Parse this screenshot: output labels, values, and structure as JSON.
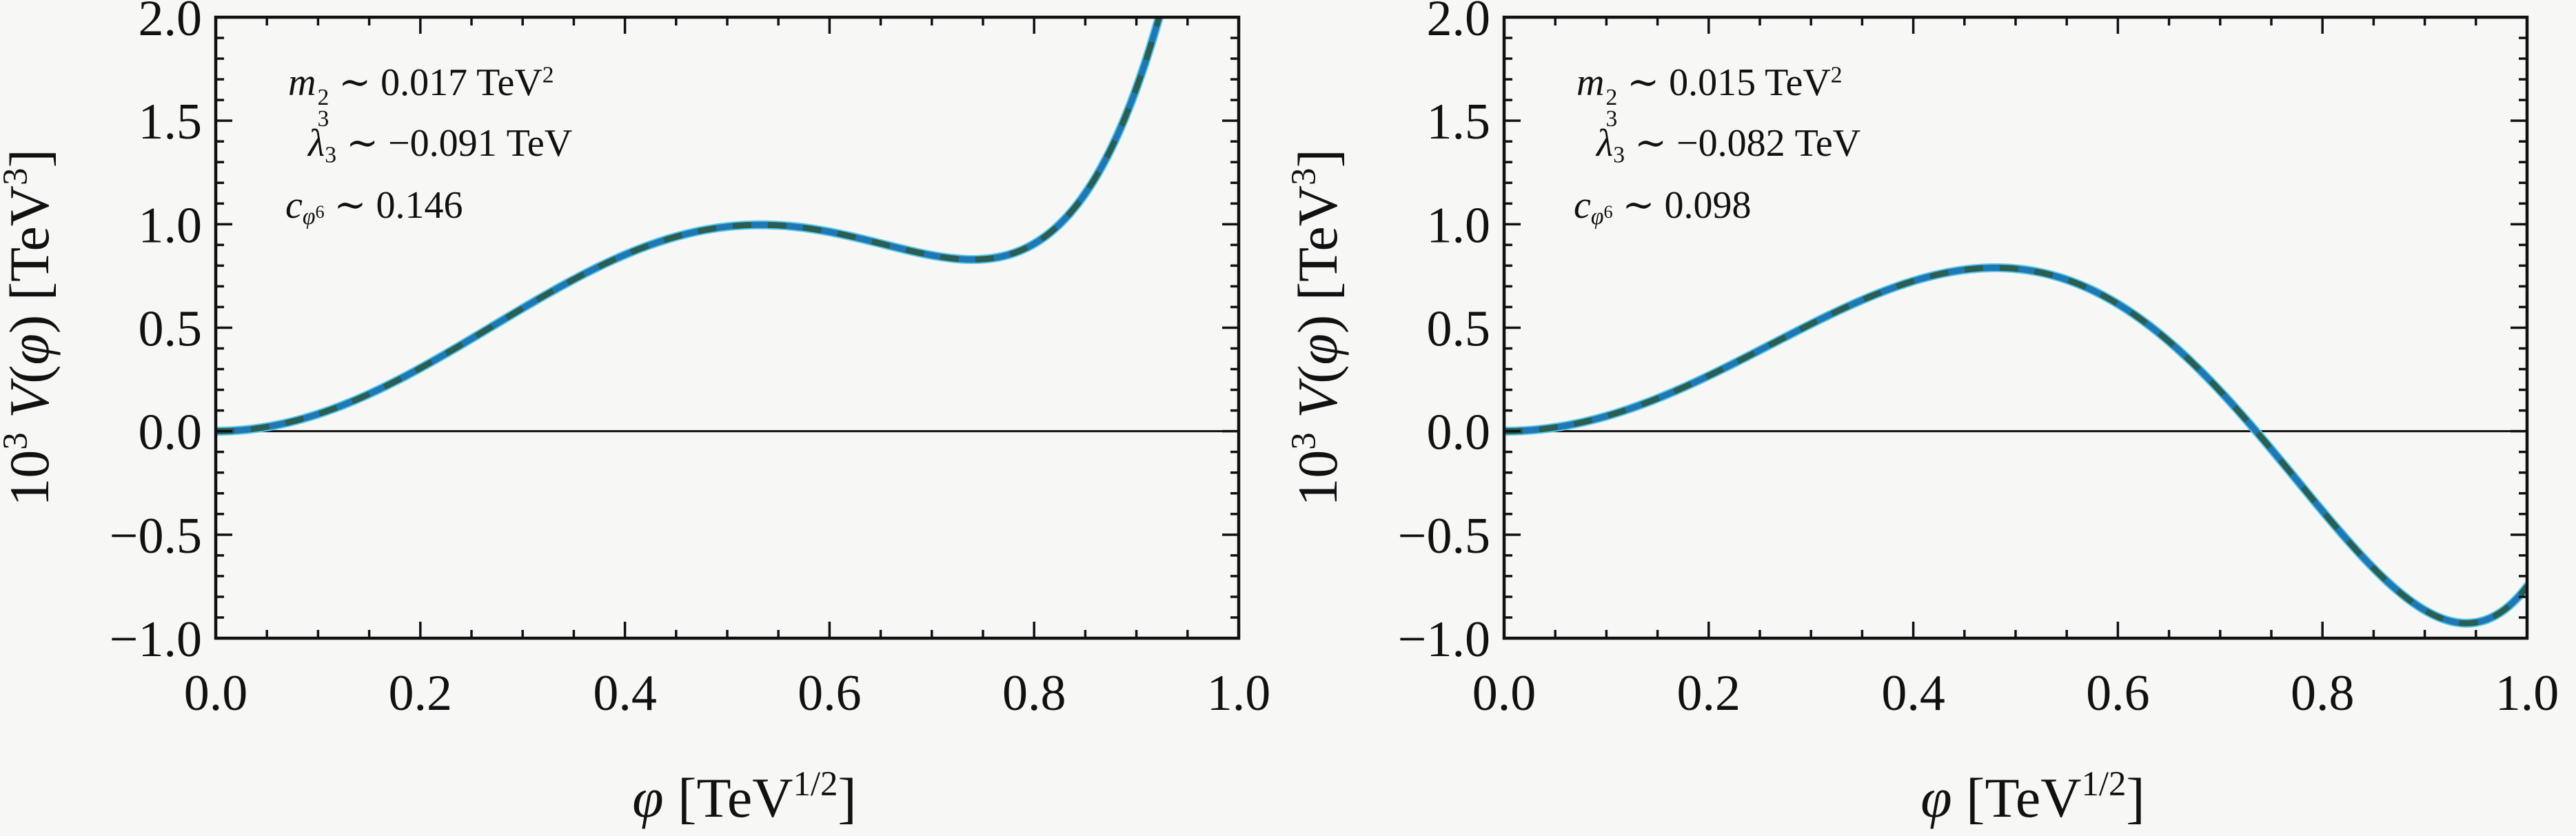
{
  "style": {
    "background": "#f7f7f5",
    "frame_color": "#111111",
    "text_color": "#111111",
    "curve_blue": "#1f77b4",
    "curve_teal": "#2a5e52",
    "curve_cyan": "#5cc8e8",
    "zero_line_color": "#111111"
  },
  "chart_data": [
    {
      "type": "line",
      "title": "",
      "xlabel": "φ [TeV^1/2]",
      "ylabel": "10^3 V(φ) [TeV^3]",
      "xlabel_segments": [
        {
          "k": "it",
          "t": "φ"
        },
        {
          "k": "t",
          "t": " [TeV"
        },
        {
          "k": "sp",
          "t": "1/2"
        },
        {
          "k": "t",
          "t": "]"
        }
      ],
      "ylabel_segments": [
        {
          "k": "t",
          "t": "10"
        },
        {
          "k": "sp",
          "t": "3"
        },
        {
          "k": "t",
          "t": " "
        },
        {
          "k": "it",
          "t": "V"
        },
        {
          "k": "t",
          "t": "("
        },
        {
          "k": "it",
          "t": "φ"
        },
        {
          "k": "t",
          "t": ")  [TeV"
        },
        {
          "k": "sp",
          "t": "3"
        },
        {
          "k": "t",
          "t": "]"
        }
      ],
      "xlim": [
        0.0,
        1.0
      ],
      "ylim": [
        -1.0,
        2.0
      ],
      "xticks": {
        "values": [
          0.0,
          0.2,
          0.4,
          0.6,
          0.8,
          1.0
        ],
        "labels": [
          "0.0",
          "0.2",
          "0.4",
          "0.6",
          "0.8",
          "1.0"
        ],
        "minor_step": 0.05
      },
      "yticks": {
        "values": [
          -1.0,
          -0.5,
          0.0,
          0.5,
          1.0,
          1.5,
          2.0
        ],
        "labels": [
          "−1.0",
          "−0.5",
          "0.0",
          "0.5",
          "1.0",
          "1.5",
          "2.0"
        ],
        "minor_step": 0.1
      },
      "grid": false,
      "legend": false,
      "zero_line": true,
      "annotations": [
        {
          "text": "m3^2 ~ 0.017 TeV^2",
          "tokens": [
            {
              "k": "it",
              "t": "m"
            },
            {
              "k": "stack",
              "sup": "2",
              "sub": "3"
            },
            {
              "k": "t",
              "t": " ∼ 0.017 TeV"
            },
            {
              "k": "sp",
              "t": "2"
            }
          ]
        },
        {
          "text": "λ3 ~ −0.091 TeV",
          "tokens": [
            {
              "k": "it",
              "t": "λ"
            },
            {
              "k": "sb",
              "t": "3"
            },
            {
              "k": "t",
              "t": " ∼ −0.091 TeV"
            }
          ]
        },
        {
          "text": "c_φ6 ~ 0.146",
          "tokens": [
            {
              "k": "it",
              "t": "c"
            },
            {
              "k": "sb2",
              "base": "φ",
              "sup": "6"
            },
            {
              "k": "t",
              "t": " ∼ 0.146"
            }
          ]
        }
      ],
      "model": {
        "formula": "1000*(0.5*m2*x^2 + 0.25*lambda3*x^4 + 0.125*c6*x^6)",
        "m2": 0.017,
        "lambda3": -0.091,
        "c6": 0.146
      },
      "samples": {
        "x": [
          0.0,
          0.05,
          0.1,
          0.15,
          0.2,
          0.25,
          0.3,
          0.35,
          0.4,
          0.45,
          0.5,
          0.55,
          0.6,
          0.65,
          0.7,
          0.75,
          0.8,
          0.85,
          0.9,
          0.95,
          1.0
        ],
        "y": [
          0.0,
          0.021,
          0.083,
          0.18,
          0.305,
          0.447,
          0.594,
          0.733,
          0.852,
          0.94,
          0.988,
          0.995,
          0.963,
          0.907,
          0.85,
          0.831,
          0.906,
          1.149,
          1.658,
          2.557,
          4.0
        ]
      },
      "features": {
        "local_max": {
          "x": 0.53,
          "y": 1.0
        },
        "local_min": {
          "x": 0.75,
          "y": 0.83
        },
        "exits_top_at_x": 0.92
      }
    },
    {
      "type": "line",
      "title": "",
      "xlabel": "φ [TeV^1/2]",
      "ylabel": "10^3 V(φ) [TeV^3]",
      "xlabel_segments": [
        {
          "k": "it",
          "t": "φ"
        },
        {
          "k": "t",
          "t": " [TeV"
        },
        {
          "k": "sp",
          "t": "1/2"
        },
        {
          "k": "t",
          "t": "]"
        }
      ],
      "ylabel_segments": [
        {
          "k": "t",
          "t": "10"
        },
        {
          "k": "sp",
          "t": "3"
        },
        {
          "k": "t",
          "t": " "
        },
        {
          "k": "it",
          "t": "V"
        },
        {
          "k": "t",
          "t": "("
        },
        {
          "k": "it",
          "t": "φ"
        },
        {
          "k": "t",
          "t": ")  [TeV"
        },
        {
          "k": "sp",
          "t": "3"
        },
        {
          "k": "t",
          "t": "]"
        }
      ],
      "xlim": [
        0.0,
        1.0
      ],
      "ylim": [
        -1.0,
        2.0
      ],
      "xticks": {
        "values": [
          0.0,
          0.2,
          0.4,
          0.6,
          0.8,
          1.0
        ],
        "labels": [
          "0.0",
          "0.2",
          "0.4",
          "0.6",
          "0.8",
          "1.0"
        ],
        "minor_step": 0.05
      },
      "yticks": {
        "values": [
          -1.0,
          -0.5,
          0.0,
          0.5,
          1.0,
          1.5,
          2.0
        ],
        "labels": [
          "−1.0",
          "−0.5",
          "0.0",
          "0.5",
          "1.0",
          "1.5",
          "2.0"
        ],
        "minor_step": 0.1
      },
      "grid": false,
      "legend": false,
      "zero_line": true,
      "annotations": [
        {
          "text": "m3^2 ~ 0.015 TeV^2",
          "tokens": [
            {
              "k": "it",
              "t": "m"
            },
            {
              "k": "stack",
              "sup": "2",
              "sub": "3"
            },
            {
              "k": "t",
              "t": " ∼ 0.015 TeV"
            },
            {
              "k": "sp",
              "t": "2"
            }
          ]
        },
        {
          "text": "λ3 ~ −0.082 TeV",
          "tokens": [
            {
              "k": "it",
              "t": "λ"
            },
            {
              "k": "sb",
              "t": "3"
            },
            {
              "k": "t",
              "t": " ∼ −0.082 TeV"
            }
          ]
        },
        {
          "text": "c_φ6 ~ 0.098",
          "tokens": [
            {
              "k": "it",
              "t": "c"
            },
            {
              "k": "sb2",
              "base": "φ",
              "sup": "6"
            },
            {
              "k": "t",
              "t": " ∼ 0.098"
            }
          ]
        }
      ],
      "model": {
        "formula": "1000*(0.5*m2*x^2 + 0.25*lambda3*x^4 + 0.125*c6*x^6)",
        "m2": 0.015,
        "lambda3": -0.082,
        "c6": 0.098
      },
      "samples": {
        "x": [
          0.0,
          0.05,
          0.1,
          0.15,
          0.2,
          0.25,
          0.3,
          0.35,
          0.4,
          0.45,
          0.5,
          0.55,
          0.6,
          0.65,
          0.7,
          0.75,
          0.8,
          0.85,
          0.9,
          0.95,
          1.0
        ],
        "y": [
          0.0,
          0.019,
          0.073,
          0.159,
          0.268,
          0.392,
          0.518,
          0.634,
          0.725,
          0.78,
          0.785,
          0.732,
          0.615,
          0.433,
          0.194,
          -0.087,
          -0.386,
          -0.662,
          -0.865,
          -0.924,
          -0.75
        ]
      },
      "features": {
        "local_max": {
          "x": 0.48,
          "y": 0.79
        },
        "zero_crossing_x": 0.73,
        "local_min": {
          "x": 0.94,
          "y": -0.92
        },
        "end_value": -0.75
      }
    }
  ]
}
